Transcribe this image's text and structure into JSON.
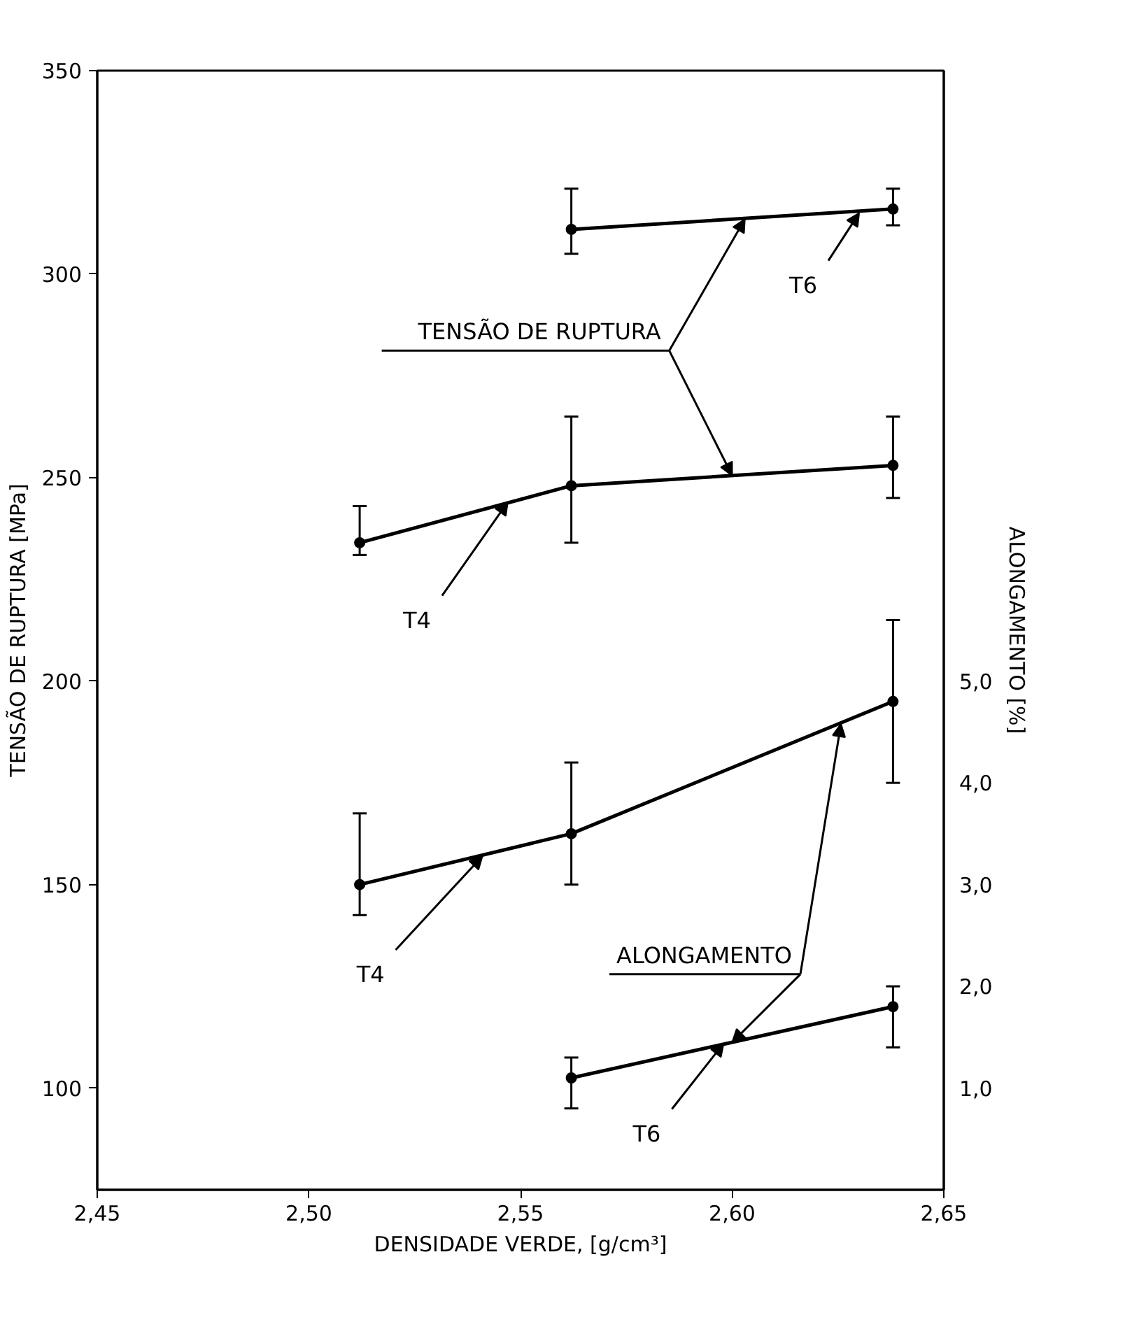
{
  "chart_data": {
    "type": "line",
    "xlabel": "DENSIDADE VERDE, [g/cm³]",
    "ylabel": "TENSÃO DE RUPTURA [MPa]",
    "y2label": "ALONGAMENTO [%]",
    "xlim": [
      2.45,
      2.65
    ],
    "xticks": [
      {
        "value": 2.45,
        "label": "2,45"
      },
      {
        "value": 2.5,
        "label": "2,50"
      },
      {
        "value": 2.55,
        "label": "2,55"
      },
      {
        "value": 2.6,
        "label": "2,60"
      },
      {
        "value": 2.65,
        "label": "2,65"
      }
    ],
    "ylim": [
      75,
      350
    ],
    "yticks": [
      100,
      150,
      200,
      250,
      300,
      350
    ],
    "y2lim": [
      0,
      11
    ],
    "y2ticks": [
      {
        "value": 1,
        "label": "1,0"
      },
      {
        "value": 2,
        "label": "2,0"
      },
      {
        "value": 3,
        "label": "3,0"
      },
      {
        "value": 4,
        "label": "4,0"
      },
      {
        "value": 5,
        "label": "5,0"
      }
    ],
    "marker": "circle",
    "line_style": "solid",
    "grid": false,
    "series": [
      {
        "color": "#000000",
        "x": [
          2.562,
          2.638
        ],
        "values": [
          311,
          316
        ],
        "errors": [
          [
            305,
            321
          ],
          [
            312,
            321
          ]
        ]
      },
      {
        "color": "#000000",
        "x": [
          2.512,
          2.562,
          2.638
        ],
        "values": [
          234,
          248,
          253
        ],
        "errors": [
          [
            231,
            243
          ],
          [
            234,
            265
          ],
          [
            245,
            265
          ]
        ]
      },
      {
        "color": "#000000",
        "axis": "y2",
        "x": [
          2.512,
          2.562,
          2.638
        ],
        "values": [
          3.0,
          3.5,
          4.8
        ],
        "errors": [
          [
            2.7,
            3.7
          ],
          [
            3.0,
            4.2
          ],
          [
            4.0,
            5.6
          ]
        ]
      },
      {
        "color": "#000000",
        "axis": "y2",
        "x": [
          2.562,
          2.638
        ],
        "values": [
          1.1,
          1.8
        ],
        "errors": [
          [
            0.8,
            1.3
          ],
          [
            1.4,
            2.0
          ]
        ]
      }
    ],
    "annotations": [
      {
        "text": "T6",
        "x": 2.63,
        "y": 315
      },
      {
        "text": "TENSÃO DE RUPTURA",
        "x": 2.603,
        "y": 313.5
      },
      {
        "text": "T4",
        "x": 2.547,
        "y": 244
      },
      {
        "text": "T4",
        "x": 2.541,
        "y": 157
      },
      {
        "text": "ALONGAMENTO",
        "x": 2.6257,
        "y": 189.5
      },
      {
        "text": "T6",
        "x": 2.598,
        "y": 111
      }
    ]
  }
}
